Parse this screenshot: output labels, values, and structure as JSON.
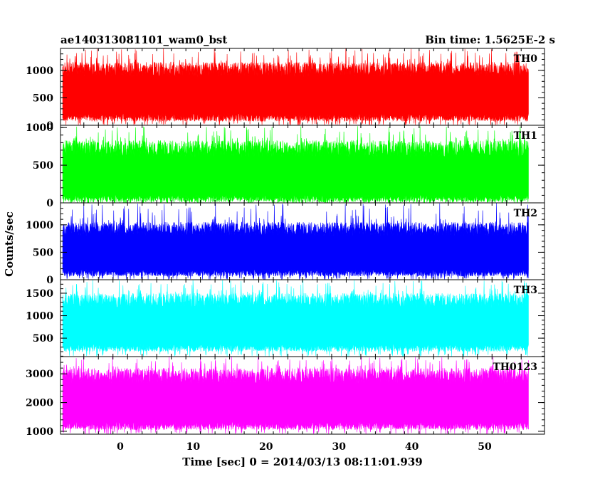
{
  "header": {
    "title": "ae140313081101_wam0_bst",
    "bin_time": "Bin time: 1.5625E-2 s"
  },
  "chart_data": {
    "type": "line",
    "title": "ae140313081101_wam0_bst",
    "subtitle": "Bin time: 1.5625E-2 s",
    "xlabel": "Time [sec] 0 = 2014/03/13 08:11:01.939",
    "ylabel": "Counts/sec",
    "xlim": [
      -8.2,
      58.2
    ],
    "x_ticks": [
      0,
      10,
      20,
      30,
      40,
      50
    ],
    "data_x_range": [
      -7.9,
      56.0
    ],
    "grid": false,
    "panels": [
      {
        "name": "TH0",
        "color": "#ff0000",
        "ylim": [
          0,
          1400
        ],
        "y_ticks": [
          0,
          500,
          1000
        ],
        "base_level": 560,
        "typical_min": 70,
        "typical_max": 1150,
        "peak_max": 1400
      },
      {
        "name": "TH1",
        "color": "#00ff00",
        "ylim": [
          0,
          1030
        ],
        "y_ticks": [
          0,
          500,
          1000
        ],
        "base_level": 330,
        "typical_min": 10,
        "typical_max": 830,
        "peak_max": 1020
      },
      {
        "name": "TH2",
        "color": "#0000ff",
        "ylim": [
          0,
          1400
        ],
        "y_ticks": [
          0,
          500,
          1000
        ],
        "base_level": 480,
        "typical_min": 60,
        "typical_max": 1050,
        "peak_max": 1400
      },
      {
        "name": "TH3",
        "color": "#00ffff",
        "ylim": [
          90,
          1800
        ],
        "y_ticks": [
          500,
          1000,
          1500
        ],
        "base_level": 770,
        "typical_min": 200,
        "typical_max": 1500,
        "peak_max": 1800
      },
      {
        "name": "TH0123",
        "color": "#ff00ff",
        "ylim": [
          900,
          3600
        ],
        "y_ticks": [
          1000,
          2000,
          3000
        ],
        "base_level": 2000,
        "typical_min": 1050,
        "typical_max": 3200,
        "peak_max": 3600
      }
    ]
  }
}
